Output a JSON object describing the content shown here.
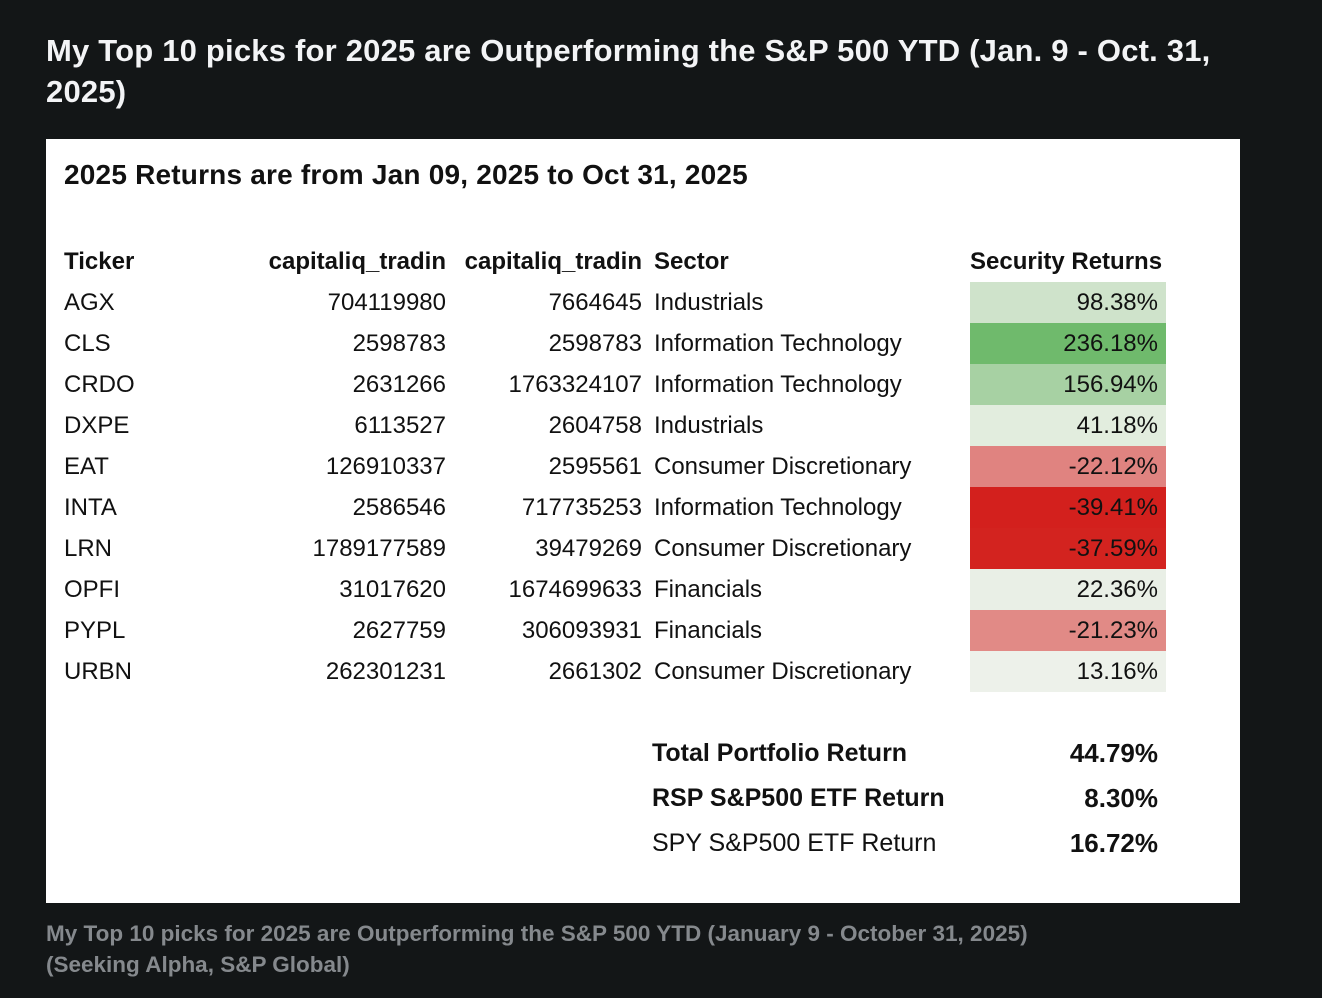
{
  "page": {
    "title": "My Top 10 picks for 2025 are Outperforming the S&P 500 YTD (Jan. 9 - Oct. 31, 2025)",
    "caption_line1": "My Top 10 picks for 2025 are Outperforming the S&P 500 YTD (January 9 - October 31, 2025)",
    "caption_line2": "(Seeking Alpha, S&P Global)"
  },
  "colors": {
    "page_bg": "#131617",
    "panel_bg": "#ffffff",
    "title_text": "#f3f4f6",
    "caption_text": "#85898d"
  },
  "chart_data": {
    "type": "table",
    "title": "2025 Returns are from Jan 09, 2025 to Oct 31, 2025",
    "columns": [
      "Ticker",
      "capitaliq_tradin",
      "capitaliq_tradin",
      "Sector",
      "Security Returns"
    ],
    "rows": [
      {
        "ticker": "AGX",
        "capitaliq_tradin_1": "704119980",
        "capitaliq_tradin_2": "7664645",
        "sector": "Industrials",
        "security_return": "98.38%",
        "return_pct": 98.38,
        "return_bg": "#cfe3cb"
      },
      {
        "ticker": "CLS",
        "capitaliq_tradin_1": "2598783",
        "capitaliq_tradin_2": "2598783",
        "sector": "Information Technology",
        "security_return": "236.18%",
        "return_pct": 236.18,
        "return_bg": "#6fba6c"
      },
      {
        "ticker": "CRDO",
        "capitaliq_tradin_1": "2631266",
        "capitaliq_tradin_2": "1763324107",
        "sector": "Information Technology",
        "security_return": "156.94%",
        "return_pct": 156.94,
        "return_bg": "#a7d1a3"
      },
      {
        "ticker": "DXPE",
        "capitaliq_tradin_1": "6113527",
        "capitaliq_tradin_2": "2604758",
        "sector": "Industrials",
        "security_return": "41.18%",
        "return_pct": 41.18,
        "return_bg": "#e2edde"
      },
      {
        "ticker": "EAT",
        "capitaliq_tradin_1": "126910337",
        "capitaliq_tradin_2": "2595561",
        "sector": "Consumer Discretionary",
        "security_return": "-22.12%",
        "return_pct": -22.12,
        "return_bg": "#e08380"
      },
      {
        "ticker": "INTA",
        "capitaliq_tradin_1": "2586546",
        "capitaliq_tradin_2": "717735253",
        "sector": "Information Technology",
        "security_return": "-39.41%",
        "return_pct": -39.41,
        "return_bg": "#d3201d"
      },
      {
        "ticker": "LRN",
        "capitaliq_tradin_1": "1789177589",
        "capitaliq_tradin_2": "39479269",
        "sector": "Consumer Discretionary",
        "security_return": "-37.59%",
        "return_pct": -37.59,
        "return_bg": "#d3231f"
      },
      {
        "ticker": "OPFI",
        "capitaliq_tradin_1": "31017620",
        "capitaliq_tradin_2": "1674699633",
        "sector": "Financials",
        "security_return": "22.36%",
        "return_pct": 22.36,
        "return_bg": "#e9efe6"
      },
      {
        "ticker": "PYPL",
        "capitaliq_tradin_1": "2627759",
        "capitaliq_tradin_2": "306093931",
        "sector": "Financials",
        "security_return": "-21.23%",
        "return_pct": -21.23,
        "return_bg": "#e18a86"
      },
      {
        "ticker": "URBN",
        "capitaliq_tradin_1": "262301231",
        "capitaliq_tradin_2": "2661302",
        "sector": "Consumer Discretionary",
        "security_return": "13.16%",
        "return_pct": 13.16,
        "return_bg": "#edf1ea"
      }
    ],
    "summary": [
      {
        "label": "Total Portfolio Return",
        "value": "44.79%",
        "value_pct": 44.79
      },
      {
        "label": "RSP S&P500 ETF Return",
        "value": "8.30%",
        "value_pct": 8.3
      },
      {
        "label": "SPY S&P500 ETF Return",
        "value": "16.72%",
        "value_pct": 16.72
      }
    ],
    "layout_hints": {
      "returns_colormap": "red-white-green heatmap applied to Security Returns column",
      "grid": "off",
      "numeric_columns_right_aligned": true
    }
  }
}
